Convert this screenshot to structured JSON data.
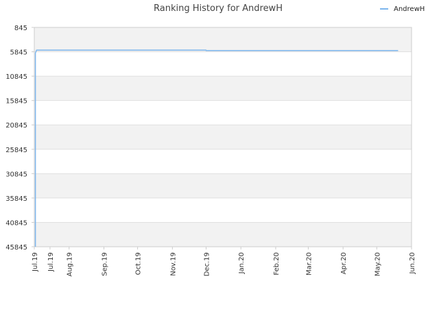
{
  "chart_data": {
    "type": "line",
    "title": "Ranking History for AndrewH",
    "xlabel": "",
    "ylabel": "",
    "y_inverted": true,
    "ylim": [
      845,
      45845
    ],
    "y_ticks": [
      845,
      5845,
      10845,
      15845,
      20845,
      25845,
      30845,
      35845,
      40845,
      45845
    ],
    "y_tick_labels": [
      "845",
      "5845",
      "10845",
      "15845",
      "20845",
      "25845",
      "30845",
      "35845",
      "40845",
      "45845"
    ],
    "xlim": [
      "2019-07-01",
      "2020-06-01"
    ],
    "x_ticks": [
      "2019-07-01",
      "2019-07-15",
      "2019-08-01",
      "2019-09-01",
      "2019-10-01",
      "2019-11-01",
      "2019-12-01",
      "2020-01-01",
      "2020-02-01",
      "2020-03-01",
      "2020-04-01",
      "2020-05-01",
      "2020-06-01"
    ],
    "x_tick_labels": [
      "Jul.19",
      "Jul.19",
      "Aug.19",
      "Sep.19",
      "Oct.19",
      "Nov.19",
      "Dec.19",
      "Jan.20",
      "Feb.20",
      "Mar.20",
      "Apr.20",
      "May.20",
      "Jun.20"
    ],
    "grid": "horizontal alternating bands",
    "legend_position": "top-right",
    "series": [
      {
        "name": "AndrewH",
        "color": "#7cb5ec",
        "points": [
          {
            "x": "2019-07-02",
            "y": 45845
          },
          {
            "x": "2019-07-02",
            "y": 6100
          },
          {
            "x": "2019-07-03",
            "y": 5500
          },
          {
            "x": "2019-12-01",
            "y": 5500
          },
          {
            "x": "2019-12-01",
            "y": 5600
          },
          {
            "x": "2020-05-20",
            "y": 5600
          }
        ]
      }
    ]
  },
  "colors": {
    "band": "#f2f2f2",
    "grid": "#e0e0e0",
    "axis": "#cccccc"
  }
}
